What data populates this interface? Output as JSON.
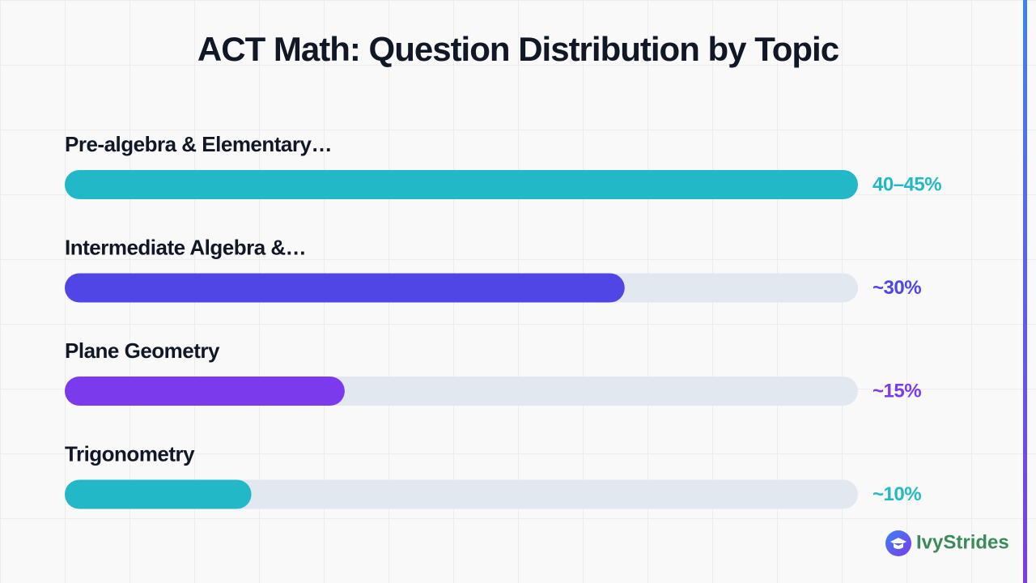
{
  "chart_data": {
    "type": "bar",
    "orientation": "horizontal",
    "title": "ACT Math: Question Distribution by Topic",
    "categories": [
      "Pre-algebra & Elementary…",
      "Intermediate Algebra &…",
      "Plane Geometry",
      "Trigonometry"
    ],
    "values": [
      42.5,
      30,
      15,
      10
    ],
    "value_labels": [
      "40–45%",
      "~30%",
      "~15%",
      "~10%"
    ],
    "colors": [
      "#22b8c8",
      "#4f46e5",
      "#7c3aed",
      "#22b8c8"
    ],
    "xlim": [
      0,
      42.5
    ]
  },
  "brand": "IvyStrides"
}
